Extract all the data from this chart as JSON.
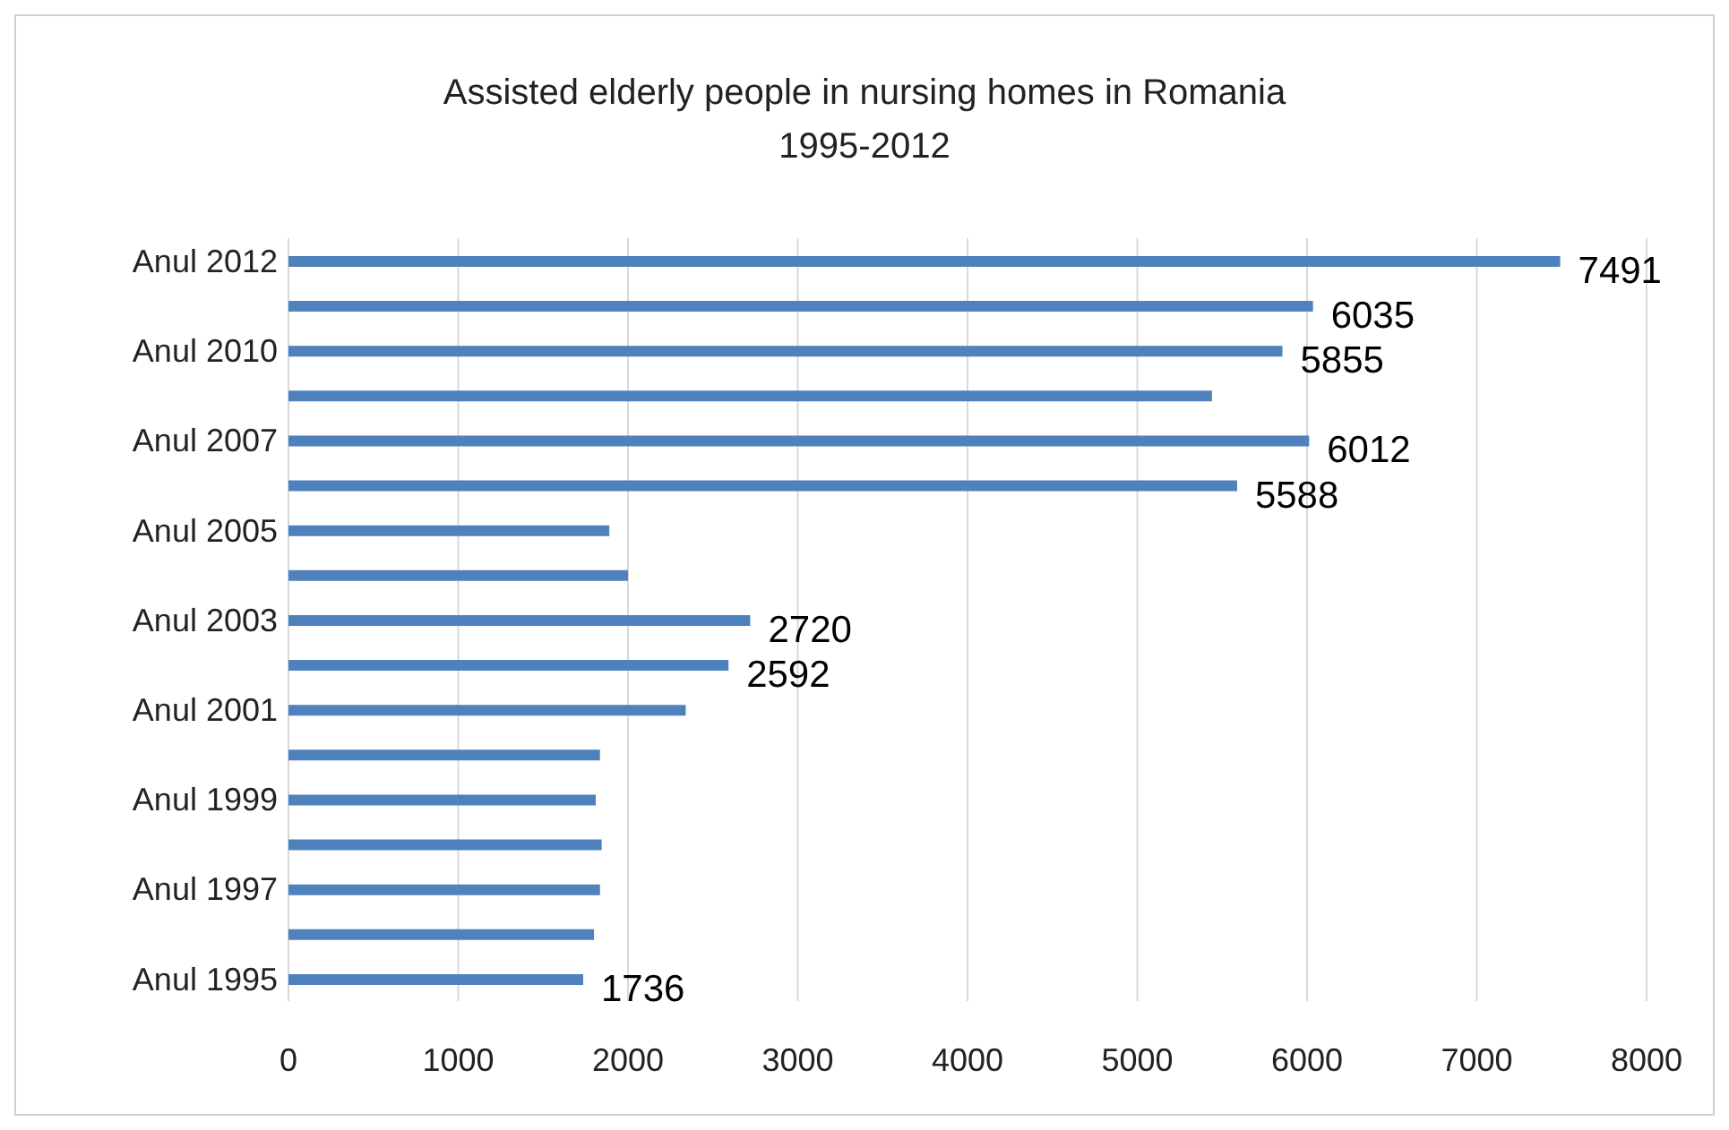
{
  "chart_data": {
    "type": "bar",
    "orientation": "horizontal",
    "title": "Assisted elderly people in nursing homes in Romania",
    "subtitle": "1995-2012",
    "categories": [
      "Anul 2012",
      null,
      "Anul 2010",
      null,
      "Anul 2007",
      null,
      "Anul 2005",
      null,
      "Anul 2003",
      null,
      "Anul 2001",
      null,
      "Anul 1999",
      null,
      "Anul 1997",
      null,
      "Anul 1995"
    ],
    "values": [
      7491,
      6035,
      5855,
      5440,
      6012,
      5588,
      1890,
      2000,
      2720,
      2592,
      2340,
      1835,
      1810,
      1845,
      1835,
      1800,
      1736
    ],
    "value_labels": [
      "7491",
      "6035",
      "5855",
      null,
      "6012",
      "5588",
      null,
      null,
      "2720",
      "2592",
      null,
      null,
      null,
      null,
      null,
      null,
      "1736"
    ],
    "color": "#4f81bd",
    "xlim": [
      0,
      8000
    ],
    "xticks": [
      0,
      1000,
      2000,
      3000,
      4000,
      5000,
      6000,
      7000,
      8000
    ],
    "grid": "x"
  }
}
